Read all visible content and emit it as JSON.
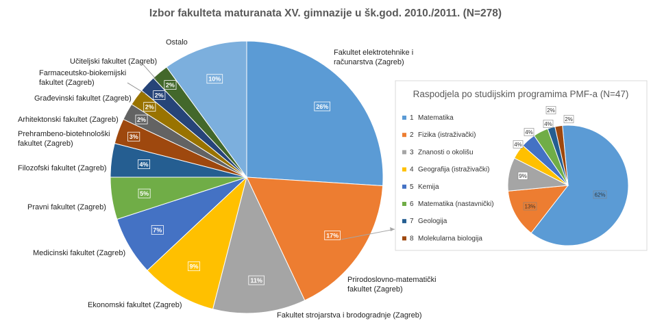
{
  "chart_data": [
    {
      "type": "pie",
      "title": "Izbor fakulteta maturanata XV. gimnazije u šk.god. 2010./2011. (N=278)",
      "categories": [
        "Fakultet elektrotehnike i računarstva (Zagreb)",
        "Prirodoslovno-matematički fakultet (Zagreb)",
        "Fakultet strojarstva i brodogradnje (Zagreb)",
        "Ekonomski fakultet (Zagreb)",
        "Medicinski fakultet (Zagreb)",
        "Pravni fakultet (Zagreb)",
        "Filozofski fakultet (Zagreb)",
        "Prehrambeno-biotehnološki fakultet (Zagreb)",
        "Arhitektonski fakultet (Zagreb)",
        "Građevinski fakultet (Zagreb)",
        "Farmaceutsko-biokemijski fakultet (Zagreb)",
        "Učiteljski fakultet (Zagreb)",
        "Ostalo"
      ],
      "values": [
        26,
        17,
        11,
        9,
        7,
        5,
        4,
        3,
        2,
        2,
        2,
        2,
        10
      ],
      "labels": [
        "26%",
        "17%",
        "11%",
        "9%",
        "7%",
        "5%",
        "4%",
        "3%",
        "2%",
        "2%",
        "2%",
        "2%",
        "10%"
      ],
      "colors": [
        "#5b9bd5",
        "#ed7d31",
        "#a5a5a5",
        "#ffc000",
        "#4472c4",
        "#70ad47",
        "#255e91",
        "#9e480e",
        "#636363",
        "#997300",
        "#264478",
        "#43682b",
        "#7cafdd"
      ]
    },
    {
      "type": "pie",
      "title": "Raspodjela po studijskim programima PMF-a (N=47)",
      "legend_numbers": [
        "1",
        "2",
        "3",
        "4",
        "5",
        "6",
        "7",
        "8"
      ],
      "categories": [
        "Matematika",
        "Fizika (istraživački)",
        "Znanosti o okolišu",
        "Geografija (istraživački)",
        "Kemija",
        "Matematika (nastavnički)",
        "Geologija",
        "Molekularna biologija"
      ],
      "values": [
        62,
        13,
        9,
        4,
        4,
        4,
        2,
        2
      ],
      "labels": [
        "62%",
        "13%",
        "9%",
        "4%",
        "4%",
        "4%",
        "2%",
        "2%"
      ],
      "colors": [
        "#5b9bd5",
        "#ed7d31",
        "#a5a5a5",
        "#ffc000",
        "#4472c4",
        "#70ad47",
        "#255e91",
        "#9e480e"
      ],
      "legend_placement": "left"
    }
  ]
}
